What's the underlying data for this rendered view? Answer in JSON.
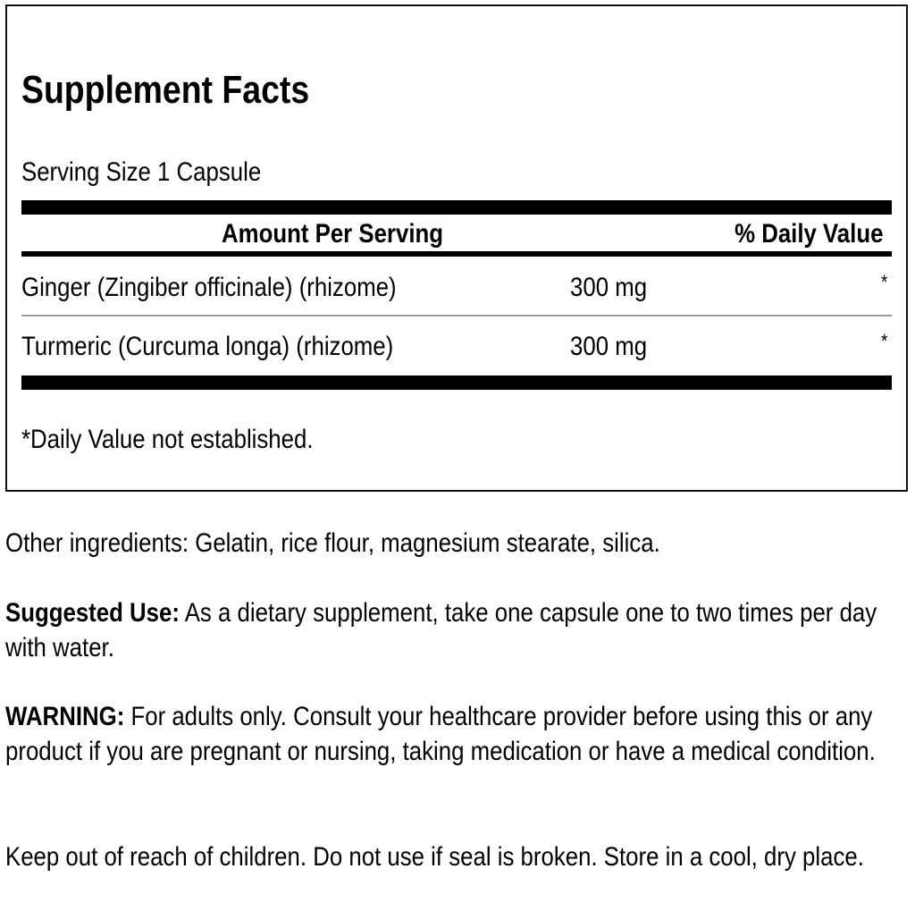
{
  "facts": {
    "title": "Supplement Facts",
    "serving_size": "Serving Size 1 Capsule",
    "header_amount": "Amount Per Serving",
    "header_dv": "% Daily Value",
    "rows": [
      {
        "name": "Ginger (Zingiber officinale) (rhizome)",
        "amount": "300 mg",
        "dv": "*"
      },
      {
        "name": "Turmeric (Curcuma longa) (rhizome)",
        "amount": "300 mg",
        "dv": "*"
      }
    ],
    "footnote": "*Daily Value not established."
  },
  "other_ingredients": "Other ingredients: Gelatin, rice flour, magnesium stearate, silica.",
  "suggested_use": {
    "label": "Suggested Use:",
    "text": " As a dietary supplement, take one capsule one to two times per day with water."
  },
  "warning": {
    "label": "WARNING:",
    "text": " For adults only. Consult your healthcare provider before using this or any product if you are pregnant or nursing, taking medication or have a medical condition."
  },
  "storage": "Keep out of reach of children. Do not use if seal is broken. Store in a cool, dry place."
}
